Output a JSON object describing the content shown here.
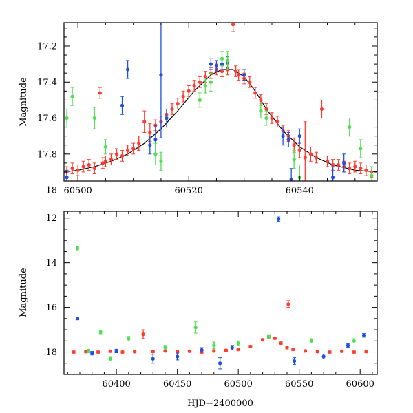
{
  "chart_data": [
    {
      "type": "scatter",
      "panel": "top",
      "title": "",
      "xlabel": "",
      "ylabel": "Magnitude",
      "xlim": [
        60497.5,
        60554
      ],
      "ylim": [
        17.95,
        17.07
      ],
      "y_inverted": true,
      "grid": false,
      "legend": "none",
      "xticks": [
        60500,
        60520,
        60540
      ],
      "xtick_labels": [
        "60500",
        "60520",
        "60540"
      ],
      "yticks": [
        17.2,
        17.4,
        17.6,
        17.8,
        18.0
      ],
      "ytick_labels": [
        "17.2",
        "17.4",
        "17.6",
        "17.8",
        "18"
      ],
      "model_curve": {
        "color": "#000000",
        "x": [
          60497.5,
          60500,
          60503,
          60506,
          60509,
          60512,
          60515,
          60518,
          60521,
          60524,
          60526,
          60528,
          60530,
          60532,
          60534,
          60537,
          60540,
          60543,
          60546,
          60550,
          60554
        ],
        "y": [
          17.9,
          17.89,
          17.87,
          17.84,
          17.8,
          17.74,
          17.66,
          17.56,
          17.45,
          17.36,
          17.33,
          17.33,
          17.37,
          17.45,
          17.55,
          17.67,
          17.76,
          17.82,
          17.86,
          17.89,
          17.9
        ]
      },
      "series": [
        {
          "color": "#ff3b2f",
          "points": [
            {
              "x": 60498,
              "y": 17.9,
              "err": 0.03
            },
            {
              "x": 60499,
              "y": 17.88,
              "err": 0.03
            },
            {
              "x": 60500,
              "y": 17.89,
              "err": 0.03
            },
            {
              "x": 60501,
              "y": 17.87,
              "err": 0.03
            },
            {
              "x": 60502,
              "y": 17.86,
              "err": 0.03
            },
            {
              "x": 60503,
              "y": 17.88,
              "err": 0.03
            },
            {
              "x": 60504,
              "y": 17.46,
              "err": 0.03
            },
            {
              "x": 60504.5,
              "y": 17.85,
              "err": 0.03
            },
            {
              "x": 60505,
              "y": 17.84,
              "err": 0.03
            },
            {
              "x": 60506,
              "y": 17.83,
              "err": 0.03
            },
            {
              "x": 60507,
              "y": 17.8,
              "err": 0.03
            },
            {
              "x": 60508,
              "y": 17.81,
              "err": 0.03
            },
            {
              "x": 60509,
              "y": 17.78,
              "err": 0.03
            },
            {
              "x": 60510,
              "y": 17.77,
              "err": 0.03
            },
            {
              "x": 60511,
              "y": 17.74,
              "err": 0.04
            },
            {
              "x": 60512,
              "y": 17.62,
              "err": 0.06
            },
            {
              "x": 60513,
              "y": 17.68,
              "err": 0.05
            },
            {
              "x": 60514,
              "y": 17.64,
              "err": 0.03
            },
            {
              "x": 60515,
              "y": 17.62,
              "err": 0.03
            },
            {
              "x": 60516,
              "y": 17.58,
              "err": 0.03
            },
            {
              "x": 60517,
              "y": 17.55,
              "err": 0.03
            },
            {
              "x": 60518,
              "y": 17.52,
              "err": 0.03
            },
            {
              "x": 60519,
              "y": 17.48,
              "err": 0.03
            },
            {
              "x": 60520,
              "y": 17.45,
              "err": 0.03
            },
            {
              "x": 60521,
              "y": 17.42,
              "err": 0.03
            },
            {
              "x": 60522,
              "y": 17.4,
              "err": 0.03
            },
            {
              "x": 60523,
              "y": 17.37,
              "err": 0.03
            },
            {
              "x": 60524,
              "y": 17.35,
              "err": 0.03
            },
            {
              "x": 60525,
              "y": 17.33,
              "err": 0.03
            },
            {
              "x": 60526,
              "y": 17.34,
              "err": 0.03
            },
            {
              "x": 60527,
              "y": 17.33,
              "err": 0.03
            },
            {
              "x": 60528,
              "y": 17.08,
              "err": 0.04
            },
            {
              "x": 60528.5,
              "y": 17.34,
              "err": 0.03
            },
            {
              "x": 60529,
              "y": 17.36,
              "err": 0.03
            },
            {
              "x": 60530,
              "y": 17.38,
              "err": 0.03
            },
            {
              "x": 60531,
              "y": 17.4,
              "err": 0.03
            },
            {
              "x": 60532,
              "y": 17.46,
              "err": 0.03
            },
            {
              "x": 60533,
              "y": 17.5,
              "err": 0.03
            },
            {
              "x": 60534,
              "y": 17.55,
              "err": 0.03
            },
            {
              "x": 60535,
              "y": 17.6,
              "err": 0.03
            },
            {
              "x": 60536,
              "y": 17.62,
              "err": 0.03
            },
            {
              "x": 60537,
              "y": 17.67,
              "err": 0.03
            },
            {
              "x": 60538,
              "y": 17.7,
              "err": 0.03
            },
            {
              "x": 60539,
              "y": 17.75,
              "err": 0.04
            },
            {
              "x": 60540,
              "y": 17.78,
              "err": 0.04
            },
            {
              "x": 60541,
              "y": 17.82,
              "err": 0.2
            },
            {
              "x": 60542,
              "y": 17.8,
              "err": 0.04
            },
            {
              "x": 60543,
              "y": 17.82,
              "err": 0.03
            },
            {
              "x": 60544,
              "y": 17.55,
              "err": 0.05
            },
            {
              "x": 60545,
              "y": 17.84,
              "err": 0.03
            },
            {
              "x": 60546,
              "y": 17.86,
              "err": 0.03
            },
            {
              "x": 60547,
              "y": 17.86,
              "err": 0.03
            },
            {
              "x": 60548,
              "y": 17.87,
              "err": 0.03
            },
            {
              "x": 60549,
              "y": 17.88,
              "err": 0.03
            },
            {
              "x": 60550,
              "y": 17.87,
              "err": 0.03
            },
            {
              "x": 60551,
              "y": 17.88,
              "err": 0.03
            },
            {
              "x": 60552,
              "y": 17.89,
              "err": 0.03
            },
            {
              "x": 60553,
              "y": 17.9,
              "err": 0.03
            }
          ]
        },
        {
          "color": "#1f4fe0",
          "points": [
            {
              "x": 60498,
              "y": 17.93,
              "err": 0.04
            },
            {
              "x": 60508,
              "y": 17.53,
              "err": 0.05
            },
            {
              "x": 60509,
              "y": 17.33,
              "err": 0.05
            },
            {
              "x": 60513,
              "y": 17.75,
              "err": 0.05
            },
            {
              "x": 60514,
              "y": 17.72,
              "err": 0.08
            },
            {
              "x": 60515,
              "y": 17.36,
              "err": 0.35
            },
            {
              "x": 60516,
              "y": 17.6,
              "err": 0.05
            },
            {
              "x": 60524,
              "y": 17.3,
              "err": 0.03
            },
            {
              "x": 60525,
              "y": 17.31,
              "err": 0.03
            },
            {
              "x": 60526,
              "y": 17.3,
              "err": 0.03
            },
            {
              "x": 60527,
              "y": 17.29,
              "err": 0.03
            },
            {
              "x": 60530,
              "y": 17.36,
              "err": 0.03
            },
            {
              "x": 60537,
              "y": 17.7,
              "err": 0.05
            },
            {
              "x": 60538,
              "y": 17.72,
              "err": 0.04
            },
            {
              "x": 60538.5,
              "y": 17.94,
              "err": 0.06
            },
            {
              "x": 60540,
              "y": 17.7,
              "err": 0.04
            },
            {
              "x": 60546,
              "y": 17.93,
              "err": 0.06
            },
            {
              "x": 60548,
              "y": 17.85,
              "err": 0.05
            }
          ]
        },
        {
          "color": "#4fe04f",
          "points": [
            {
              "x": 60498,
              "y": 17.6,
              "err": 0.05
            },
            {
              "x": 60499,
              "y": 17.48,
              "err": 0.05
            },
            {
              "x": 60503,
              "y": 17.6,
              "err": 0.06
            },
            {
              "x": 60505,
              "y": 17.76,
              "err": 0.04
            },
            {
              "x": 60514,
              "y": 17.8,
              "err": 0.06
            },
            {
              "x": 60515,
              "y": 17.84,
              "err": 0.05
            },
            {
              "x": 60522,
              "y": 17.5,
              "err": 0.04
            },
            {
              "x": 60523,
              "y": 17.42,
              "err": 0.04
            },
            {
              "x": 60524,
              "y": 17.4,
              "err": 0.05
            },
            {
              "x": 60526,
              "y": 17.27,
              "err": 0.04
            },
            {
              "x": 60527,
              "y": 17.28,
              "err": 0.05
            },
            {
              "x": 60533,
              "y": 17.56,
              "err": 0.04
            },
            {
              "x": 60534,
              "y": 17.6,
              "err": 0.04
            },
            {
              "x": 60539,
              "y": 17.83,
              "err": 0.05
            },
            {
              "x": 60540,
              "y": 17.93,
              "err": 0.07
            },
            {
              "x": 60549,
              "y": 17.65,
              "err": 0.05
            },
            {
              "x": 60551,
              "y": 17.77,
              "err": 0.05
            },
            {
              "x": 60553,
              "y": 17.92,
              "err": 0.05
            }
          ]
        }
      ]
    },
    {
      "type": "scatter",
      "panel": "bottom",
      "title": "",
      "xlabel": "HJD−2400000",
      "ylabel": "Magnitude",
      "xlim": [
        60357,
        60614
      ],
      "ylim": [
        19.0,
        11.7
      ],
      "y_inverted": true,
      "grid": false,
      "legend": "none",
      "xticks": [
        60400,
        60450,
        60500,
        60550,
        60600
      ],
      "xtick_labels": [
        "60400",
        "60450",
        "60500",
        "60550",
        "60600"
      ],
      "yticks": [
        12,
        14,
        16,
        18
      ],
      "ytick_labels": [
        "12",
        "14",
        "16",
        "18"
      ],
      "series": [
        {
          "color": "#ff3b2f",
          "points": [
            {
              "x": 60365,
              "y": 18.0,
              "err": 0.05
            },
            {
              "x": 60375,
              "y": 17.98,
              "err": 0.05
            },
            {
              "x": 60385,
              "y": 18.0,
              "err": 0.05
            },
            {
              "x": 60395,
              "y": 17.96,
              "err": 0.05
            },
            {
              "x": 60405,
              "y": 18.0,
              "err": 0.05
            },
            {
              "x": 60415,
              "y": 17.98,
              "err": 0.05
            },
            {
              "x": 60422,
              "y": 17.2,
              "err": 0.2
            },
            {
              "x": 60430,
              "y": 17.98,
              "err": 0.05
            },
            {
              "x": 60440,
              "y": 17.95,
              "err": 0.05
            },
            {
              "x": 60450,
              "y": 17.98,
              "err": 0.05
            },
            {
              "x": 60460,
              "y": 17.96,
              "err": 0.05
            },
            {
              "x": 60470,
              "y": 18.0,
              "err": 0.05
            },
            {
              "x": 60480,
              "y": 17.95,
              "err": 0.05
            },
            {
              "x": 60490,
              "y": 17.92,
              "err": 0.05
            },
            {
              "x": 60500,
              "y": 17.88,
              "err": 0.05
            },
            {
              "x": 60510,
              "y": 17.75,
              "err": 0.05
            },
            {
              "x": 60520,
              "y": 17.45,
              "err": 0.05
            },
            {
              "x": 60525,
              "y": 17.32,
              "err": 0.05
            },
            {
              "x": 60530,
              "y": 17.38,
              "err": 0.05
            },
            {
              "x": 60535,
              "y": 17.6,
              "err": 0.05
            },
            {
              "x": 60540,
              "y": 17.8,
              "err": 0.05
            },
            {
              "x": 60541,
              "y": 15.85,
              "err": 0.15
            },
            {
              "x": 60545,
              "y": 17.88,
              "err": 0.05
            },
            {
              "x": 60555,
              "y": 17.95,
              "err": 0.05
            },
            {
              "x": 60565,
              "y": 17.98,
              "err": 0.05
            },
            {
              "x": 60575,
              "y": 18.0,
              "err": 0.05
            },
            {
              "x": 60585,
              "y": 17.96,
              "err": 0.05
            },
            {
              "x": 60595,
              "y": 18.0,
              "err": 0.05
            },
            {
              "x": 60605,
              "y": 17.98,
              "err": 0.05
            }
          ]
        },
        {
          "color": "#1f4fe0",
          "points": [
            {
              "x": 60368,
              "y": 16.5,
              "err": 0.05
            },
            {
              "x": 60380,
              "y": 18.05,
              "err": 0.08
            },
            {
              "x": 60400,
              "y": 17.95,
              "err": 0.08
            },
            {
              "x": 60430,
              "y": 18.3,
              "err": 0.2
            },
            {
              "x": 60450,
              "y": 18.2,
              "err": 0.15
            },
            {
              "x": 60470,
              "y": 17.9,
              "err": 0.1
            },
            {
              "x": 60485,
              "y": 18.5,
              "err": 0.25
            },
            {
              "x": 60495,
              "y": 17.8,
              "err": 0.1
            },
            {
              "x": 60533,
              "y": 12.05,
              "err": 0.1
            },
            {
              "x": 60546,
              "y": 18.4,
              "err": 0.15
            },
            {
              "x": 60570,
              "y": 18.2,
              "err": 0.1
            },
            {
              "x": 60590,
              "y": 17.7,
              "err": 0.08
            },
            {
              "x": 60603,
              "y": 17.25,
              "err": 0.08
            }
          ]
        },
        {
          "color": "#4fe04f",
          "points": [
            {
              "x": 60368,
              "y": 13.35,
              "err": 0.08
            },
            {
              "x": 60377,
              "y": 17.95,
              "err": 0.08
            },
            {
              "x": 60387,
              "y": 17.1,
              "err": 0.08
            },
            {
              "x": 60395,
              "y": 18.3,
              "err": 0.1
            },
            {
              "x": 60410,
              "y": 17.4,
              "err": 0.1
            },
            {
              "x": 60440,
              "y": 17.8,
              "err": 0.1
            },
            {
              "x": 60465,
              "y": 16.9,
              "err": 0.25
            },
            {
              "x": 60480,
              "y": 17.7,
              "err": 0.15
            },
            {
              "x": 60500,
              "y": 17.6,
              "err": 0.1
            },
            {
              "x": 60525,
              "y": 17.3,
              "err": 0.08
            },
            {
              "x": 60560,
              "y": 17.5,
              "err": 0.1
            },
            {
              "x": 60595,
              "y": 17.5,
              "err": 0.1
            }
          ]
        }
      ]
    }
  ]
}
